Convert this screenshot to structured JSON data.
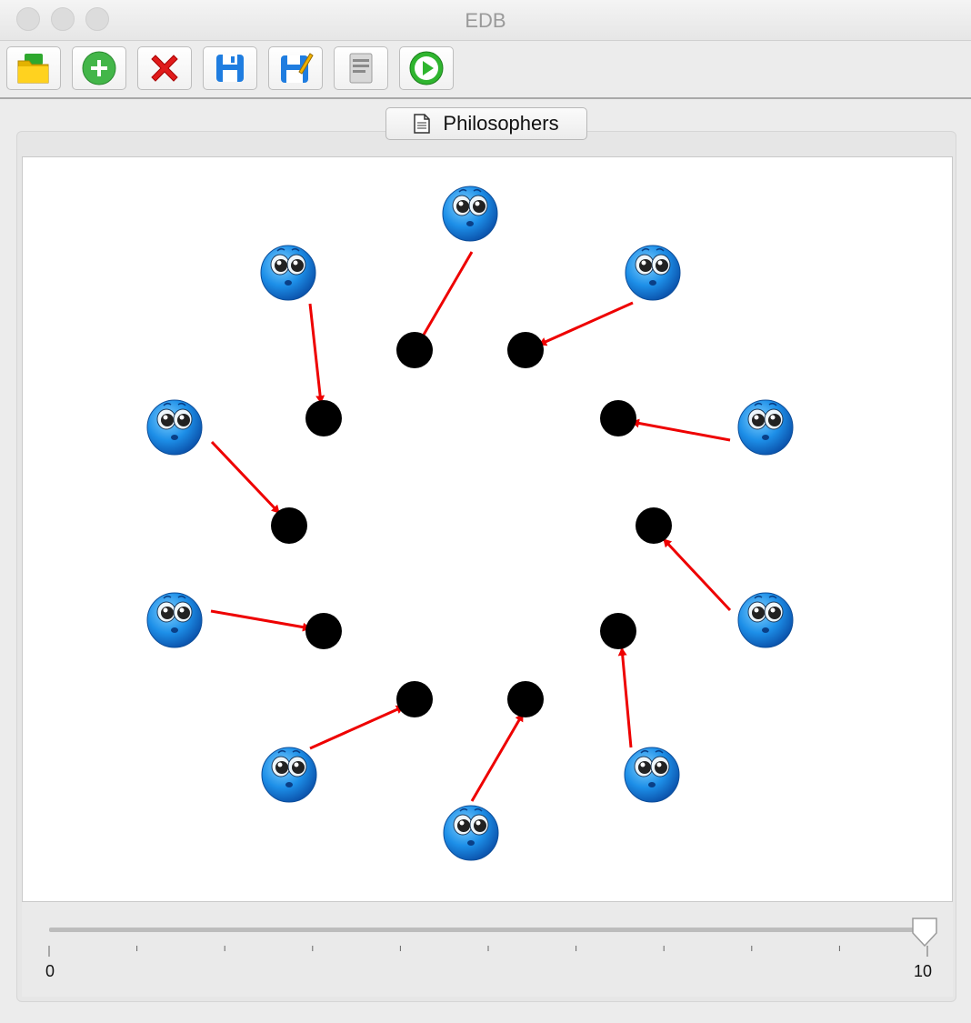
{
  "window": {
    "title": "EDB"
  },
  "toolbar": {
    "buttons": [
      {
        "name": "open-button",
        "icon": "folder-open-icon"
      },
      {
        "name": "add-button",
        "icon": "plus-circle-icon"
      },
      {
        "name": "delete-button",
        "icon": "red-x-icon"
      },
      {
        "name": "save-button",
        "icon": "floppy-disk-icon"
      },
      {
        "name": "save-as-button",
        "icon": "floppy-edit-icon"
      },
      {
        "name": "document-button",
        "icon": "document-icon"
      },
      {
        "name": "run-button",
        "icon": "play-circle-icon"
      }
    ]
  },
  "tab": {
    "label": "Philosophers"
  },
  "slider": {
    "min_label": "0",
    "max_label": "10",
    "value": 10
  },
  "colors": {
    "arrow": "#ee0000",
    "fork": "#000000",
    "philosopher": "#1a8ee6"
  }
}
